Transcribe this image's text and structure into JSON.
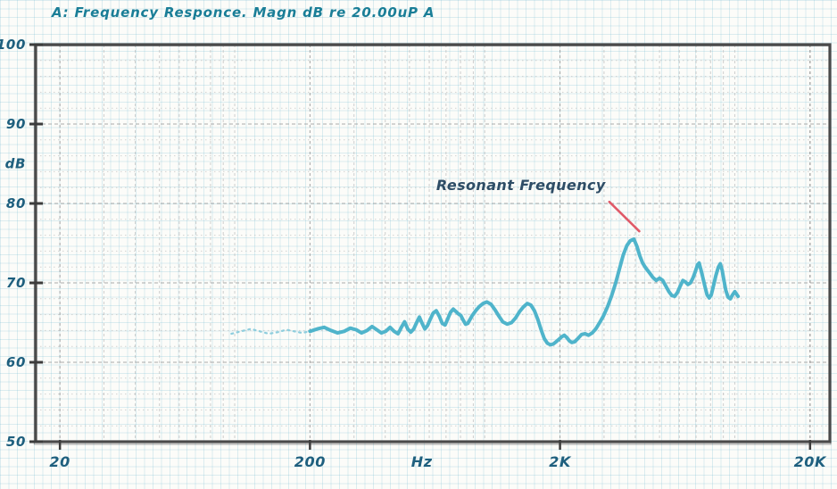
{
  "chart_data": {
    "type": "line",
    "title": "A: Frequency Responce. Magn dB re 20.00uP A",
    "x_scale": "log",
    "xlim": [
      16,
      24000
    ],
    "ylim": [
      50,
      100
    ],
    "xlabel": "Hz",
    "ylabel": "dB",
    "x_ticks": [
      {
        "value": 20,
        "label": "20"
      },
      {
        "value": 200,
        "label": "200"
      },
      {
        "value": 2000,
        "label": "2K"
      },
      {
        "value": 20000,
        "label": "20K"
      }
    ],
    "x_unit_label": {
      "text": "Hz",
      "at_freq": 560
    },
    "y_ticks": [
      {
        "value": 100,
        "label": "100"
      },
      {
        "value": 90,
        "label": "90"
      },
      {
        "value": 80,
        "label": "80"
      },
      {
        "value": 70,
        "label": "70"
      },
      {
        "value": 60,
        "label": "60"
      },
      {
        "value": 50,
        "label": "50"
      }
    ],
    "y_unit_label": {
      "text": "dB",
      "at_db": 85
    },
    "grid": {
      "h_step_db": 2,
      "v_minor_per_decade": true,
      "grid_on": true
    },
    "legend": "none",
    "annotation": {
      "text": "Resonant Frequency",
      "text_pos": {
        "freq": 640,
        "db": 82.3
      },
      "pointer": {
        "from": {
          "freq": 3150,
          "db": 80.2
        },
        "to": {
          "freq": 4150,
          "db": 76.5
        }
      },
      "pointer_color": "#e05a68"
    },
    "colors": {
      "curve": "#4fb4cb",
      "curve_faint": "#8ecddd",
      "title": "#1a7e97",
      "tick_label": "#1e5f7e",
      "annotation_text": "#2e4d66",
      "grid_minor": "#bcbcbc",
      "grid_major": "#979797",
      "border": "#4a4a4a"
    },
    "series": [
      {
        "name": "lead-in (faint dotted)",
        "style": "faint-dotted",
        "points": [
          [
            97,
            63.6
          ],
          [
            106,
            63.9
          ],
          [
            116,
            64.2
          ],
          [
            126,
            63.9
          ],
          [
            137,
            63.6
          ],
          [
            149,
            63.8
          ],
          [
            161,
            64.1
          ],
          [
            173,
            63.9
          ],
          [
            186,
            63.7
          ],
          [
            200,
            63.9
          ]
        ]
      },
      {
        "name": "frequency-response",
        "style": "solid",
        "points": [
          [
            200,
            63.9
          ],
          [
            214,
            64.2
          ],
          [
            228,
            64.4
          ],
          [
            243,
            64.0
          ],
          [
            258,
            63.7
          ],
          [
            274,
            63.9
          ],
          [
            290,
            64.3
          ],
          [
            306,
            64.1
          ],
          [
            322,
            63.7
          ],
          [
            338,
            64.0
          ],
          [
            354,
            64.5
          ],
          [
            370,
            64.1
          ],
          [
            386,
            63.7
          ],
          [
            402,
            63.9
          ],
          [
            418,
            64.4
          ],
          [
            434,
            63.9
          ],
          [
            450,
            63.6
          ],
          [
            464,
            64.4
          ],
          [
            478,
            65.1
          ],
          [
            492,
            64.2
          ],
          [
            506,
            63.8
          ],
          [
            520,
            64.2
          ],
          [
            534,
            65.0
          ],
          [
            548,
            65.7
          ],
          [
            562,
            64.9
          ],
          [
            576,
            64.2
          ],
          [
            590,
            64.6
          ],
          [
            605,
            65.4
          ],
          [
            622,
            66.2
          ],
          [
            640,
            66.5
          ],
          [
            658,
            65.8
          ],
          [
            676,
            64.9
          ],
          [
            694,
            64.7
          ],
          [
            712,
            65.5
          ],
          [
            730,
            66.3
          ],
          [
            748,
            66.7
          ],
          [
            766,
            66.4
          ],
          [
            784,
            66.1
          ],
          [
            802,
            65.9
          ],
          [
            820,
            65.3
          ],
          [
            838,
            64.8
          ],
          [
            856,
            64.9
          ],
          [
            874,
            65.4
          ],
          [
            892,
            65.9
          ],
          [
            920,
            66.5
          ],
          [
            950,
            67.0
          ],
          [
            985,
            67.4
          ],
          [
            1020,
            67.6
          ],
          [
            1060,
            67.3
          ],
          [
            1100,
            66.6
          ],
          [
            1140,
            65.8
          ],
          [
            1180,
            65.1
          ],
          [
            1230,
            64.8
          ],
          [
            1280,
            65.0
          ],
          [
            1330,
            65.6
          ],
          [
            1380,
            66.4
          ],
          [
            1430,
            67.0
          ],
          [
            1480,
            67.4
          ],
          [
            1530,
            67.2
          ],
          [
            1580,
            66.5
          ],
          [
            1630,
            65.4
          ],
          [
            1680,
            64.1
          ],
          [
            1730,
            63.0
          ],
          [
            1780,
            62.4
          ],
          [
            1830,
            62.2
          ],
          [
            1880,
            62.3
          ],
          [
            1930,
            62.6
          ],
          [
            1980,
            62.9
          ],
          [
            2030,
            63.2
          ],
          [
            2080,
            63.4
          ],
          [
            2130,
            63.1
          ],
          [
            2180,
            62.7
          ],
          [
            2230,
            62.5
          ],
          [
            2290,
            62.6
          ],
          [
            2360,
            63.0
          ],
          [
            2440,
            63.5
          ],
          [
            2520,
            63.6
          ],
          [
            2600,
            63.4
          ],
          [
            2690,
            63.7
          ],
          [
            2780,
            64.2
          ],
          [
            2880,
            65.0
          ],
          [
            2980,
            65.8
          ],
          [
            3100,
            67.0
          ],
          [
            3220,
            68.4
          ],
          [
            3340,
            70.0
          ],
          [
            3460,
            71.8
          ],
          [
            3580,
            73.5
          ],
          [
            3700,
            74.7
          ],
          [
            3820,
            75.3
          ],
          [
            3950,
            75.5
          ],
          [
            4060,
            74.6
          ],
          [
            4170,
            73.4
          ],
          [
            4280,
            72.5
          ],
          [
            4400,
            71.9
          ],
          [
            4550,
            71.3
          ],
          [
            4700,
            70.7
          ],
          [
            4850,
            70.3
          ],
          [
            5000,
            70.6
          ],
          [
            5150,
            70.3
          ],
          [
            5300,
            69.6
          ],
          [
            5450,
            68.9
          ],
          [
            5600,
            68.4
          ],
          [
            5750,
            68.3
          ],
          [
            5900,
            68.8
          ],
          [
            6050,
            69.6
          ],
          [
            6200,
            70.3
          ],
          [
            6350,
            70.1
          ],
          [
            6500,
            69.8
          ],
          [
            6650,
            70.0
          ],
          [
            6800,
            70.6
          ],
          [
            6950,
            71.4
          ],
          [
            7100,
            72.3
          ],
          [
            7200,
            72.5
          ],
          [
            7300,
            71.8
          ],
          [
            7450,
            70.7
          ],
          [
            7600,
            69.5
          ],
          [
            7750,
            68.5
          ],
          [
            7900,
            68.1
          ],
          [
            8050,
            68.5
          ],
          [
            8200,
            69.5
          ],
          [
            8400,
            70.9
          ],
          [
            8600,
            72.0
          ],
          [
            8750,
            72.4
          ],
          [
            8900,
            71.6
          ],
          [
            9050,
            70.3
          ],
          [
            9200,
            69.1
          ],
          [
            9400,
            68.2
          ],
          [
            9600,
            68.0
          ],
          [
            9800,
            68.5
          ],
          [
            10000,
            68.9
          ],
          [
            10150,
            68.6
          ],
          [
            10300,
            68.3
          ]
        ]
      }
    ]
  }
}
